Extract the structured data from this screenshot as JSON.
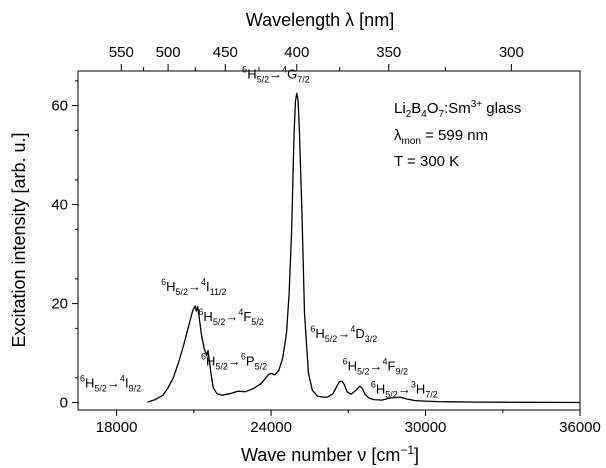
{
  "chart_data": {
    "type": "line",
    "xlabel": {
      "main": "Wave number ν [cm",
      "sup": "−1",
      "close": "]"
    },
    "ylabel": "Excitation intensity [arb. u.]",
    "top_xlabel": "Wavelength λ [nm]",
    "xlim": [
      16500,
      36000
    ],
    "ylim": [
      -1.5,
      67
    ],
    "x_ticks": [
      18000,
      24000,
      30000,
      36000
    ],
    "x_tick_labels": [
      "18000",
      "24000",
      "30000",
      "36000"
    ],
    "x_minor_ticks": [
      21000,
      27000,
      33000
    ],
    "y_ticks": [
      0,
      20,
      40,
      60
    ],
    "y_tick_labels": [
      "0",
      "20",
      "40",
      "60"
    ],
    "top_ticks_nm": [
      550,
      500,
      450,
      400,
      350,
      300
    ],
    "top_tick_labels": [
      "550",
      "500",
      "450",
      "400",
      "350",
      "300"
    ],
    "top_minor_ticks_nm": [
      525,
      475,
      425,
      375,
      325,
      275
    ],
    "grid": false,
    "legend": "none",
    "line_color": "#000000",
    "series": [
      {
        "x": [
          19200,
          19500,
          19800,
          20000,
          20200,
          20400,
          20600,
          20750,
          20850,
          20950,
          21050,
          21100,
          21150,
          21200,
          21300,
          21400,
          21500,
          21550,
          21650,
          21750,
          21900,
          22100,
          22400,
          22700,
          23000,
          23300,
          23600,
          23800,
          23900,
          24000,
          24150,
          24300,
          24450,
          24600,
          24700,
          24800,
          24850,
          24900,
          24950,
          25000,
          25050,
          25100,
          25200,
          25300,
          25450,
          25600,
          25800,
          26000,
          26200,
          26400,
          26550,
          26650,
          26750,
          26850,
          26950,
          27100,
          27300,
          27450,
          27550,
          27650,
          27800,
          28000,
          28300,
          28600,
          29000,
          29300,
          29600,
          30000,
          30500,
          31000,
          32000,
          33000,
          34000,
          35000,
          36000
        ],
        "y": [
          0.1,
          0.6,
          1.5,
          3,
          5,
          8,
          11.5,
          14.5,
          16.5,
          18.5,
          19.5,
          18.5,
          19.4,
          17.5,
          13.5,
          11,
          9.5,
          10.5,
          6.5,
          3,
          1.8,
          1.5,
          1.8,
          2.3,
          2.2,
          2.8,
          3.8,
          5,
          5.7,
          5.9,
          5.6,
          6.5,
          9,
          14,
          22,
          35,
          46,
          55,
          61,
          62.5,
          61,
          55,
          38,
          18,
          6,
          2.5,
          1.3,
          1.1,
          1.1,
          1.8,
          3.2,
          4.2,
          4.3,
          3.6,
          2.2,
          1.7,
          2.5,
          3.3,
          2.8,
          1.7,
          0.9,
          0.6,
          0.5,
          0.9,
          1.1,
          0.7,
          0.4,
          0.3,
          0.2,
          0.15,
          0.1,
          0.08,
          0.05,
          0.03,
          0.02
        ]
      }
    ],
    "annotations": [
      {
        "id": "t1",
        "base": "H",
        "pre1": "6",
        "sub1": "5/2",
        "arrow": "→",
        "pre2": "4",
        "letter": "I",
        "sub2": "9/2",
        "x": 16500,
        "y": 3
      },
      {
        "id": "t2",
        "base": "H",
        "pre1": "6",
        "sub1": "5/2",
        "arrow": "→",
        "pre2": "4",
        "letter": "I",
        "sub2": "11/2",
        "x": 19650,
        "y": 22.5
      },
      {
        "id": "t3",
        "base": "H",
        "pre1": "6",
        "sub1": "5/2",
        "arrow": "→",
        "pre2": "4",
        "letter": "F",
        "sub2": "5/2",
        "x": 21100,
        "y": 16.5
      },
      {
        "id": "t4",
        "base": "H",
        "pre1": "6",
        "sub1": "5/2",
        "arrow": "→",
        "pre2": "6",
        "letter": "P",
        "sub2": "5/2",
        "x": 21200,
        "y": 7.5
      },
      {
        "id": "t5",
        "base": "H",
        "pre1": "6",
        "sub1": "5/2",
        "arrow": "→",
        "pre2": "4",
        "letter": "G",
        "sub2": "7/2",
        "x": 22800,
        "y": 65.5
      },
      {
        "id": "t6",
        "base": "H",
        "pre1": "6",
        "sub1": "5/2",
        "arrow": "→",
        "pre2": "4",
        "letter": "D",
        "sub2": "3/2",
        "x": 25450,
        "y": 13
      },
      {
        "id": "t7",
        "base": "H",
        "pre1": "6",
        "sub1": "5/2",
        "arrow": "→",
        "pre2": "4",
        "letter": "F",
        "sub2": "9/2",
        "x": 26700,
        "y": 6.5
      },
      {
        "id": "t8",
        "base": "H",
        "pre1": "6",
        "sub1": "5/2",
        "arrow": "→",
        "pre2": "3",
        "letter": "H",
        "sub2": "7/2",
        "x": 27800,
        "y": 1.8
      }
    ],
    "info": {
      "line1": {
        "a": "Li",
        "a_sub": "2",
        "b": "B",
        "b_sub": "4",
        "c": "O",
        "c_sub": "7",
        "d": ":Sm",
        "d_sup": "3+",
        "e": " glass"
      },
      "line2": {
        "a": "λ",
        "a_sub": "mon",
        "b": " = 599 nm"
      },
      "line3": "T = 300 K"
    }
  }
}
